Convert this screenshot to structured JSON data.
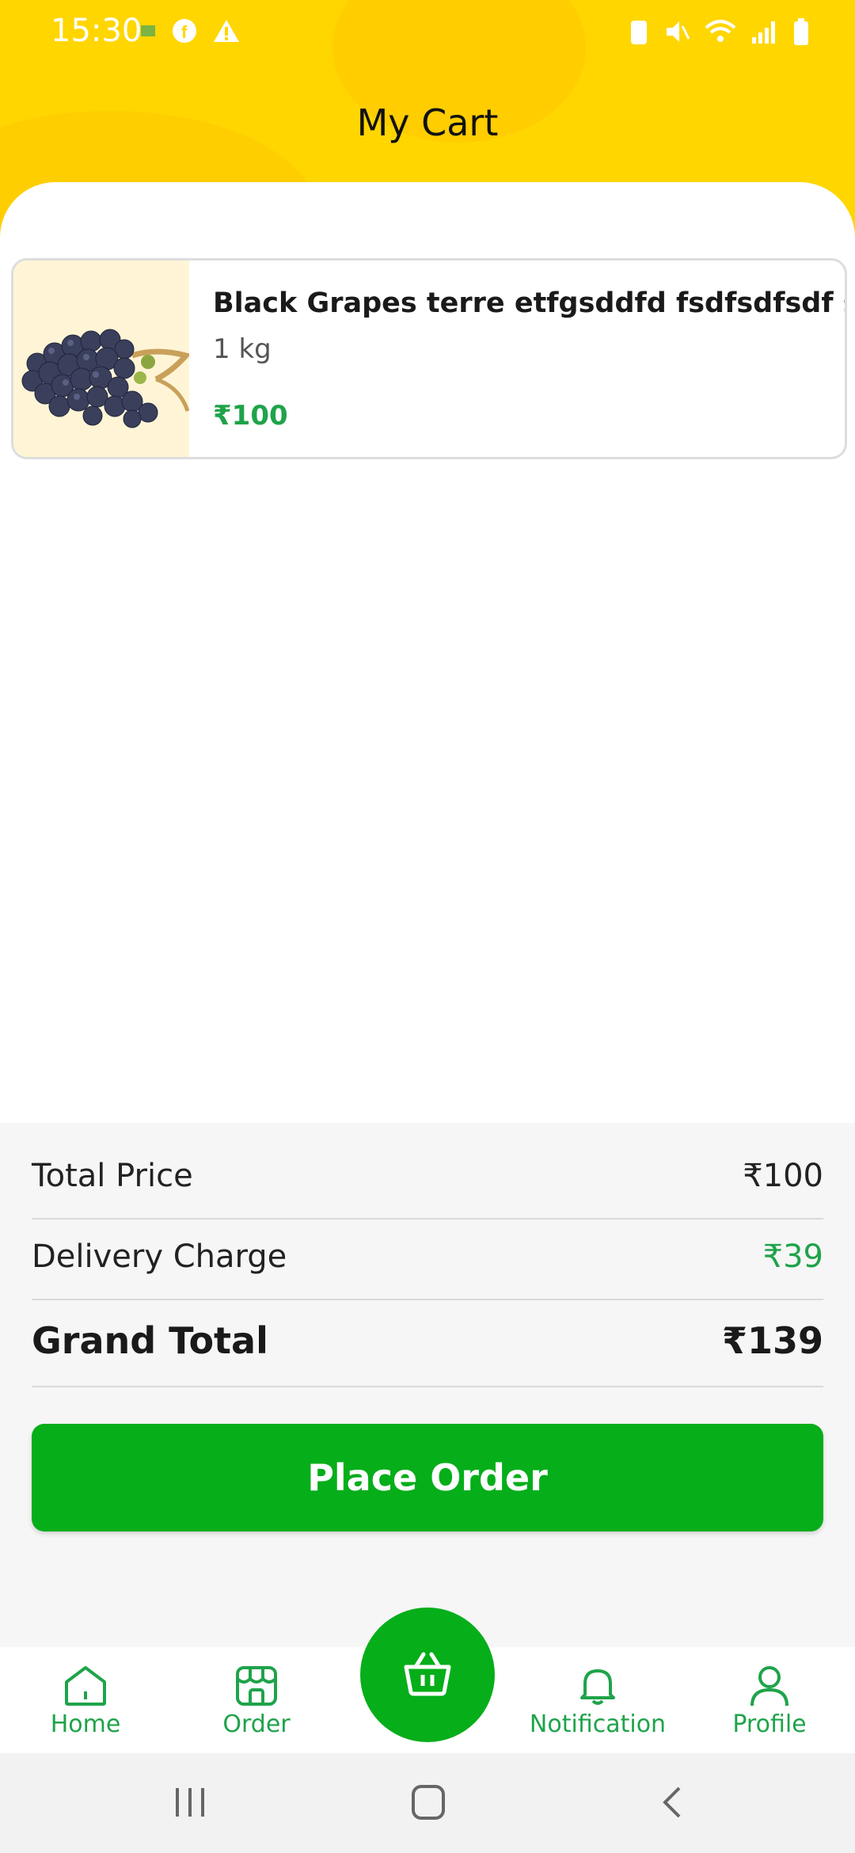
{
  "status_bar": {
    "time": "15:30"
  },
  "header": {
    "title": "My Cart"
  },
  "cart": {
    "items": [
      {
        "name": "Black Grapes  terre etfgsddfd fsdfsdfsdf sdf",
        "quantity": "1 kg",
        "price": "₹100"
      }
    ]
  },
  "summary": {
    "total_price_label": "Total Price",
    "total_price_value": "₹100",
    "delivery_label": "Delivery Charge",
    "delivery_value": "₹39",
    "grand_total_label": "Grand Total",
    "grand_total_value": "₹139"
  },
  "place_order_label": "Place Order",
  "bottom_nav": {
    "home": "Home",
    "order": "Order",
    "notification": "Notification",
    "profile": "Profile"
  },
  "colors": {
    "header": "#FFD600",
    "accent_green": "#06AE1A",
    "price_green": "#1FA34A"
  }
}
